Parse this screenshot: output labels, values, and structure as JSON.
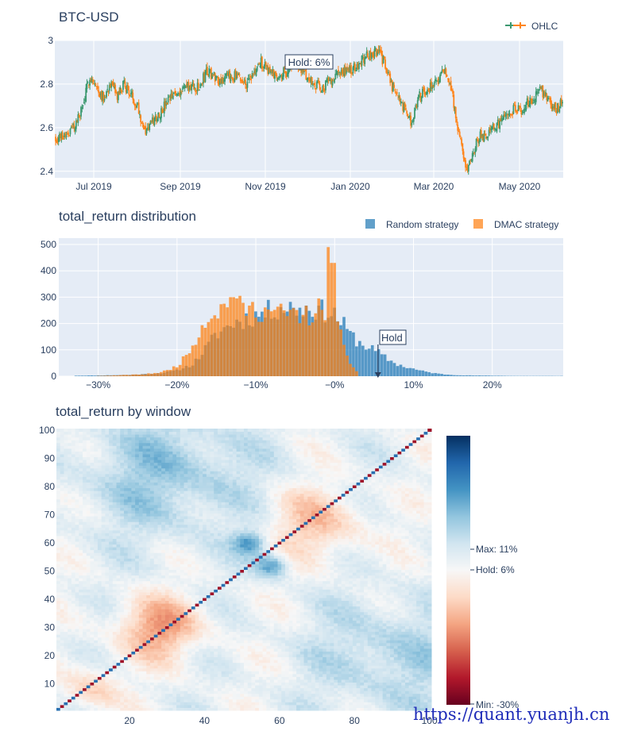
{
  "chart_data": [
    {
      "type": "candlestick",
      "title": "BTC-USD",
      "legend": [
        "OHLC"
      ],
      "legend_position": "top-right",
      "colors": {
        "increasing": "#3d9970",
        "decreasing": "#ff851b",
        "background": "#e5ecf6",
        "grid": "#ffffff"
      },
      "y_ticks": [
        "2.4",
        "2.6",
        "2.8",
        "3"
      ],
      "ylim": [
        2.37,
        3.0
      ],
      "x_ticks": [
        "Jul 2019",
        "Sep 2019",
        "Nov 2019",
        "Jan 2020",
        "Mar 2020",
        "May 2020"
      ],
      "annotation": "Hold: 6%",
      "close_anchors": [
        {
          "week": 0,
          "close": 2.55
        },
        {
          "week": 2,
          "close": 2.58
        },
        {
          "week": 3,
          "close": 2.62
        },
        {
          "week": 4,
          "close": 2.7
        },
        {
          "week": 5,
          "close": 2.84
        },
        {
          "week": 6,
          "close": 2.78
        },
        {
          "week": 7,
          "close": 2.74
        },
        {
          "week": 8,
          "close": 2.8
        },
        {
          "week": 9,
          "close": 2.74
        },
        {
          "week": 10,
          "close": 2.8
        },
        {
          "week": 12,
          "close": 2.7
        },
        {
          "week": 13,
          "close": 2.58
        },
        {
          "week": 15,
          "close": 2.66
        },
        {
          "week": 17,
          "close": 2.74
        },
        {
          "week": 19,
          "close": 2.79
        },
        {
          "week": 21,
          "close": 2.78
        },
        {
          "week": 22,
          "close": 2.86
        },
        {
          "week": 24,
          "close": 2.82
        },
        {
          "week": 26,
          "close": 2.84
        },
        {
          "week": 28,
          "close": 2.8
        },
        {
          "week": 30,
          "close": 2.9
        },
        {
          "week": 32,
          "close": 2.84
        },
        {
          "week": 34,
          "close": 2.86
        },
        {
          "week": 35,
          "close": 2.9
        },
        {
          "week": 37,
          "close": 2.82
        },
        {
          "week": 39,
          "close": 2.78
        },
        {
          "week": 41,
          "close": 2.85
        },
        {
          "week": 43,
          "close": 2.86
        },
        {
          "week": 45,
          "close": 2.92
        },
        {
          "week": 47,
          "close": 2.95
        },
        {
          "week": 48,
          "close": 2.9
        },
        {
          "week": 49,
          "close": 2.8
        },
        {
          "week": 51,
          "close": 2.68
        },
        {
          "week": 52,
          "close": 2.62
        },
        {
          "week": 53,
          "close": 2.74
        },
        {
          "week": 55,
          "close": 2.8
        },
        {
          "week": 57,
          "close": 2.86
        },
        {
          "week": 58,
          "close": 2.74
        },
        {
          "week": 59,
          "close": 2.55
        },
        {
          "week": 60,
          "close": 2.4
        },
        {
          "week": 61,
          "close": 2.5
        },
        {
          "week": 62,
          "close": 2.56
        },
        {
          "week": 63,
          "close": 2.57
        },
        {
          "week": 64,
          "close": 2.6
        },
        {
          "week": 65,
          "close": 2.63
        },
        {
          "week": 67,
          "close": 2.69
        },
        {
          "week": 68,
          "close": 2.67
        },
        {
          "week": 69,
          "close": 2.72
        },
        {
          "week": 71,
          "close": 2.77
        },
        {
          "week": 72,
          "close": 2.72
        },
        {
          "week": 73,
          "close": 2.68
        },
        {
          "week": 74,
          "close": 2.72
        }
      ]
    },
    {
      "type": "bar",
      "title": "total_return distribution",
      "legend_position": "top-right",
      "x_ticks": [
        "−30%",
        "−20%",
        "−10%",
        "−0%",
        "10%",
        "20%"
      ],
      "y_ticks": [
        "0",
        "100",
        "200",
        "300",
        "400",
        "500"
      ],
      "ylim": [
        0,
        500
      ],
      "xlim": [
        -0.35,
        0.29
      ],
      "annotation": {
        "text": "Hold",
        "x": 0.055
      },
      "series": [
        {
          "name": "Random strategy",
          "color": "#1f77b4",
          "points": [
            [
              -0.33,
              2
            ],
            [
              -0.3,
              3
            ],
            [
              -0.28,
              4
            ],
            [
              -0.26,
              5
            ],
            [
              -0.24,
              8
            ],
            [
              -0.22,
              12
            ],
            [
              -0.2,
              22
            ],
            [
              -0.18,
              45
            ],
            [
              -0.17,
              80
            ],
            [
              -0.16,
              120
            ],
            [
              -0.15,
              160
            ],
            [
              -0.14,
              180
            ],
            [
              -0.13,
              200
            ],
            [
              -0.12,
              210
            ],
            [
              -0.1,
              230
            ],
            [
              -0.09,
              240
            ],
            [
              -0.08,
              250
            ],
            [
              -0.07,
              260
            ],
            [
              -0.06,
              262
            ],
            [
              -0.05,
              258
            ],
            [
              -0.04,
              255
            ],
            [
              -0.03,
              260
            ],
            [
              -0.02,
              250
            ],
            [
              -0.01,
              245
            ],
            [
              0.0,
              235
            ],
            [
              0.01,
              200
            ],
            [
              0.02,
              160
            ],
            [
              0.03,
              130
            ],
            [
              0.04,
              115
            ],
            [
              0.05,
              100
            ],
            [
              0.06,
              80
            ],
            [
              0.07,
              60
            ],
            [
              0.08,
              45
            ],
            [
              0.09,
              35
            ],
            [
              0.1,
              28
            ],
            [
              0.11,
              20
            ],
            [
              0.12,
              15
            ],
            [
              0.13,
              10
            ],
            [
              0.14,
              7
            ],
            [
              0.15,
              5
            ],
            [
              0.17,
              3
            ],
            [
              0.2,
              2
            ],
            [
              0.23,
              1
            ],
            [
              0.26,
              1
            ],
            [
              0.29,
              1
            ]
          ]
        },
        {
          "name": "DMAC strategy",
          "color": "#ff7f0e",
          "points": [
            [
              -0.3,
              1
            ],
            [
              -0.28,
              3
            ],
            [
              -0.26,
              5
            ],
            [
              -0.24,
              8
            ],
            [
              -0.22,
              15
            ],
            [
              -0.21,
              25
            ],
            [
              -0.2,
              40
            ],
            [
              -0.19,
              70
            ],
            [
              -0.18,
              120
            ],
            [
              -0.17,
              180
            ],
            [
              -0.16,
              230
            ],
            [
              -0.15,
              250
            ],
            [
              -0.14,
              262
            ],
            [
              -0.13,
              265
            ],
            [
              -0.12,
              260
            ],
            [
              -0.11,
              255
            ],
            [
              -0.1,
              250
            ],
            [
              -0.09,
              248
            ],
            [
              -0.08,
              245
            ],
            [
              -0.07,
              240
            ],
            [
              -0.06,
              238
            ],
            [
              -0.05,
              235
            ],
            [
              -0.04,
              232
            ],
            [
              -0.03,
              228
            ],
            [
              -0.02,
              220
            ],
            [
              -0.01,
              225
            ],
            [
              0.0,
              205
            ],
            [
              0.01,
              140
            ],
            [
              0.02,
              50
            ],
            [
              0.03,
              10
            ]
          ],
          "spikes": [
            [
              -0.13,
              300
            ],
            [
              -0.125,
              295
            ],
            [
              -0.02,
              295
            ],
            [
              -0.006,
              490
            ],
            [
              -0.002,
              430
            ]
          ]
        }
      ]
    },
    {
      "type": "heatmap",
      "title": "total_return by window",
      "x_ticks": [
        "20",
        "40",
        "60",
        "80",
        "100"
      ],
      "y_ticks": [
        "10",
        "20",
        "30",
        "40",
        "50",
        "60",
        "70",
        "80",
        "90",
        "100"
      ],
      "xlim": [
        1,
        100
      ],
      "ylim": [
        1,
        100
      ],
      "colorscale": "RdBu",
      "colorbar": {
        "min": -0.3,
        "max": 0.11,
        "hold": 0.06,
        "max_label": "Max: 11%",
        "hold_label": "Hold: 6%",
        "min_label": "Min: -30%"
      }
    }
  ],
  "watermark": "https://quant.yuanjh.cn"
}
